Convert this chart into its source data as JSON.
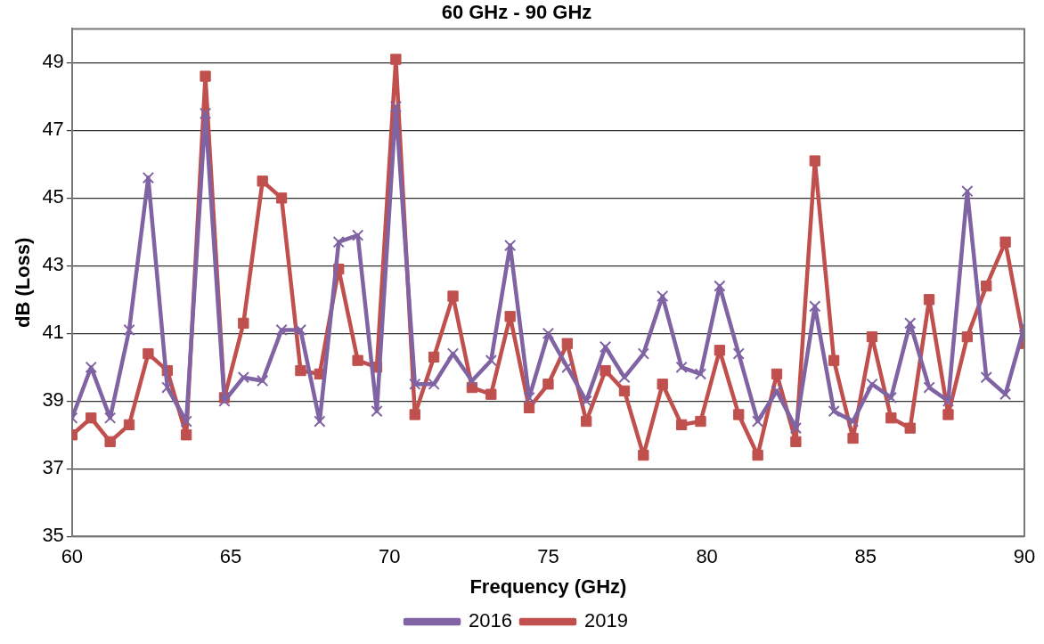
{
  "chart_data": {
    "type": "line",
    "title": "60 GHz - 90 GHz",
    "xlabel": "Frequency (GHz)",
    "ylabel": "dB (Loss)",
    "x": [
      60,
      60.6,
      61.2,
      61.8,
      62.4,
      63,
      63.6,
      64.2,
      64.8,
      65.4,
      66,
      66.6,
      67.2,
      67.8,
      68.4,
      69,
      69.6,
      70.2,
      70.8,
      71.4,
      72,
      72.6,
      73.2,
      73.8,
      74.4,
      75,
      75.6,
      76.2,
      76.8,
      77.4,
      78,
      78.6,
      79.2,
      79.8,
      80.4,
      81,
      81.6,
      82.2,
      82.8,
      83.4,
      84,
      84.6,
      85.2,
      85.8,
      86.4,
      87,
      87.6,
      88.2,
      88.8,
      89.4,
      90
    ],
    "series": [
      {
        "name": "2016",
        "color": "#7f63a2",
        "marker": "cross",
        "values": [
          38.5,
          40.0,
          38.5,
          41.1,
          45.6,
          39.4,
          38.4,
          47.5,
          39.0,
          39.7,
          39.6,
          41.1,
          41.1,
          38.4,
          43.7,
          43.9,
          38.7,
          47.7,
          39.5,
          39.5,
          40.4,
          39.6,
          40.2,
          43.6,
          39.1,
          41.0,
          40.0,
          39.0,
          40.6,
          39.7,
          40.4,
          42.1,
          40.0,
          39.8,
          42.4,
          40.4,
          38.4,
          39.3,
          38.2,
          41.8,
          38.7,
          38.4,
          39.5,
          39.1,
          41.3,
          39.4,
          39.0,
          45.2,
          39.7,
          39.2,
          41.2
        ]
      },
      {
        "name": "2019",
        "color": "#c0504d",
        "marker": "square",
        "values": [
          38.0,
          38.5,
          37.8,
          38.3,
          40.4,
          39.9,
          38.0,
          48.6,
          39.1,
          41.3,
          45.5,
          45.0,
          39.9,
          39.8,
          42.9,
          40.2,
          40.0,
          49.1,
          38.6,
          40.3,
          42.1,
          39.4,
          39.2,
          41.5,
          38.8,
          39.5,
          40.7,
          38.4,
          39.9,
          39.3,
          37.4,
          39.5,
          38.3,
          38.4,
          40.5,
          38.6,
          37.4,
          39.8,
          37.8,
          46.1,
          40.2,
          37.9,
          40.9,
          38.5,
          38.2,
          42.0,
          38.6,
          40.9,
          42.4,
          43.7,
          40.7
        ]
      }
    ],
    "xlim": [
      60,
      90
    ],
    "xticks": [
      60,
      65,
      70,
      75,
      80,
      85,
      90
    ],
    "ylim": [
      35,
      50
    ],
    "yticks": [
      35,
      37,
      39,
      41,
      43,
      45,
      47,
      49
    ],
    "grid": "y",
    "legend": "bottom",
    "line_style": "solid"
  }
}
